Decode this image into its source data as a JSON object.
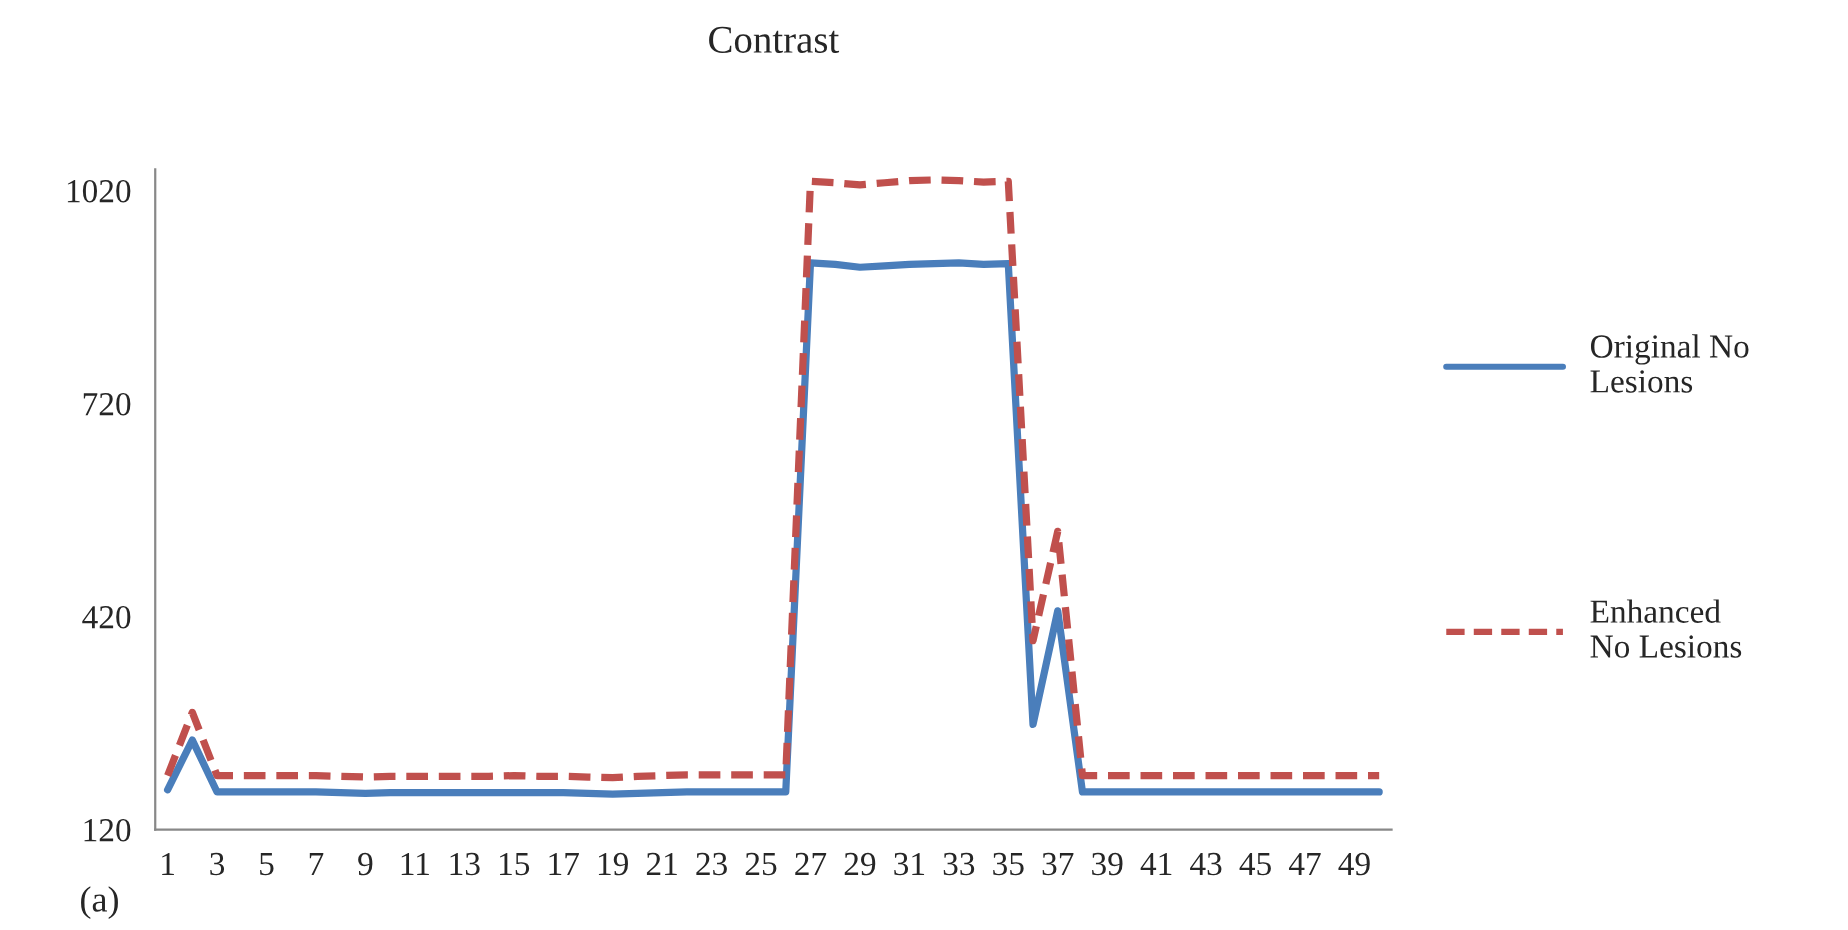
{
  "chart_data": {
    "type": "line",
    "title": "Contrast",
    "categories": [
      "1",
      null,
      "3",
      null,
      "5",
      null,
      "7",
      null,
      "9",
      null,
      "11",
      null,
      "13",
      null,
      "15",
      null,
      "17",
      null,
      "19",
      null,
      "21",
      null,
      "23",
      null,
      "25",
      null,
      "27",
      null,
      "29",
      null,
      "31",
      null,
      "33",
      null,
      "35",
      null,
      "37",
      null,
      "39",
      null,
      "41",
      null,
      "43",
      null,
      "45",
      null,
      "47",
      null,
      "49",
      null
    ],
    "series": [
      {
        "name": "Original No\nLesions",
        "color": "#4a7ebb",
        "line_style": "solid",
        "values": [
          176,
          246,
          173,
          173,
          173,
          173,
          173,
          172,
          171,
          172,
          172,
          172,
          172,
          172,
          172,
          172,
          172,
          171,
          170,
          171,
          172,
          173,
          173,
          173,
          173,
          173,
          918,
          916,
          912,
          914,
          916,
          917,
          918,
          916,
          917,
          268,
          428,
          173,
          173,
          173,
          173,
          173,
          173,
          173,
          173,
          173,
          173,
          173,
          173,
          173
        ]
      },
      {
        "name": "Enhanced\nNo Lesions",
        "color": "#c0504d",
        "line_style": "dashed",
        "values": [
          196,
          285,
          196,
          196,
          196,
          196,
          196,
          195,
          194,
          195,
          195,
          195,
          195,
          195,
          196,
          195,
          195,
          194,
          193,
          195,
          196,
          197,
          197,
          197,
          197,
          197,
          1033,
          1031,
          1028,
          1031,
          1034,
          1035,
          1034,
          1032,
          1033,
          386,
          540,
          196,
          196,
          196,
          196,
          196,
          196,
          196,
          196,
          196,
          196,
          196,
          196,
          196
        ]
      }
    ],
    "ylim": [
      120,
      1050
    ],
    "yticks": [
      120,
      420,
      720,
      1020
    ],
    "grid": false,
    "legend": "right",
    "marker": "none",
    "annotations": [
      "(a)"
    ]
  }
}
